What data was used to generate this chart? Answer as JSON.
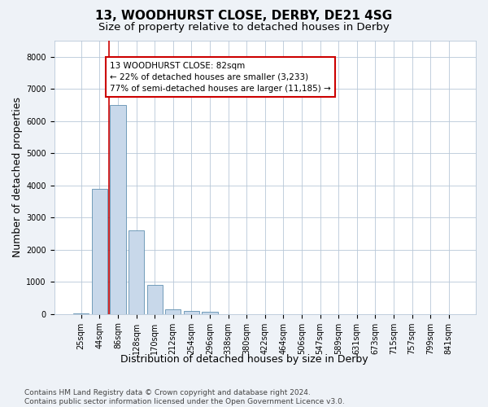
{
  "title_line1": "13, WOODHURST CLOSE, DERBY, DE21 4SG",
  "title_line2": "Size of property relative to detached houses in Derby",
  "xlabel": "Distribution of detached houses by size in Derby",
  "ylabel": "Number of detached properties",
  "categories": [
    "25sqm",
    "44sqm",
    "86sqm",
    "128sqm",
    "170sqm",
    "212sqm",
    "254sqm",
    "296sqm",
    "338sqm",
    "380sqm",
    "422sqm",
    "464sqm",
    "506sqm",
    "547sqm",
    "589sqm",
    "631sqm",
    "673sqm",
    "715sqm",
    "757sqm",
    "799sqm",
    "841sqm"
  ],
  "values": [
    30,
    3900,
    6500,
    2600,
    900,
    150,
    100,
    60,
    0,
    0,
    0,
    0,
    0,
    0,
    0,
    0,
    0,
    0,
    0,
    0,
    0
  ],
  "bar_color": "#c8d8ea",
  "bar_edge_color": "#6090b0",
  "annotation_line1": "13 WOODHURST CLOSE: 82sqm",
  "annotation_line2": "← 22% of detached houses are smaller (3,233)",
  "annotation_line3": "77% of semi-detached houses are larger (11,185) →",
  "annotation_box_edge_color": "#cc0000",
  "vline_color": "#cc0000",
  "vline_x_index": 1.5,
  "ylim": [
    0,
    8500
  ],
  "yticks": [
    0,
    1000,
    2000,
    3000,
    4000,
    5000,
    6000,
    7000,
    8000
  ],
  "footer_text": "Contains HM Land Registry data © Crown copyright and database right 2024.\nContains public sector information licensed under the Open Government Licence v3.0.",
  "background_color": "#eef2f7",
  "plot_background_color": "#ffffff",
  "grid_color": "#b8c8d8",
  "title_fontsize": 11,
  "subtitle_fontsize": 9.5,
  "axis_label_fontsize": 9,
  "tick_fontsize": 7,
  "annotation_fontsize": 7.5,
  "footer_fontsize": 6.5
}
